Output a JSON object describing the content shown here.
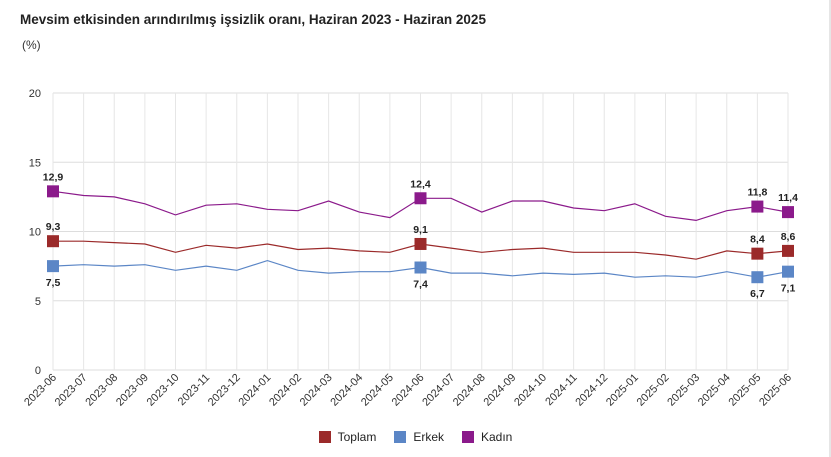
{
  "chart_data": {
    "type": "line",
    "title": "Mevsim etkisinden arındırılmış işsizlik oranı, Haziran 2023 - Haziran 2025",
    "ylabel": "(%)",
    "ylim": [
      0,
      20
    ],
    "yticks": [
      0,
      5,
      10,
      15,
      20
    ],
    "grid": true,
    "legend_position": "bottom",
    "categories": [
      "2023-06",
      "2023-07",
      "2023-08",
      "2023-09",
      "2023-10",
      "2023-11",
      "2023-12",
      "2024-01",
      "2024-02",
      "2024-03",
      "2024-04",
      "2024-05",
      "2024-06",
      "2024-07",
      "2024-08",
      "2024-09",
      "2024-10",
      "2024-11",
      "2024-12",
      "2025-01",
      "2025-02",
      "2025-03",
      "2025-04",
      "2025-05",
      "2025-06"
    ],
    "series": [
      {
        "name": "Toplam",
        "color": "#9b2a2a",
        "values": [
          9.3,
          9.3,
          9.2,
          9.1,
          8.5,
          9.0,
          8.8,
          9.1,
          8.7,
          8.8,
          8.6,
          8.5,
          9.1,
          8.8,
          8.5,
          8.7,
          8.8,
          8.5,
          8.5,
          8.5,
          8.3,
          8.0,
          8.6,
          8.4,
          8.6
        ],
        "labeled": {
          "0": "9,3",
          "12": "9,1",
          "23": "8,4",
          "24": "8,6"
        }
      },
      {
        "name": "Erkek",
        "color": "#5b86c6",
        "values": [
          7.5,
          7.6,
          7.5,
          7.6,
          7.2,
          7.5,
          7.2,
          7.9,
          7.2,
          7.0,
          7.1,
          7.1,
          7.4,
          7.0,
          7.0,
          6.8,
          7.0,
          6.9,
          7.0,
          6.7,
          6.8,
          6.7,
          7.1,
          6.7,
          7.1
        ],
        "labeled": {
          "0": "7,5",
          "12": "7,4",
          "23": "6,7",
          "24": "7,1"
        }
      },
      {
        "name": "Kadın",
        "color": "#8b1a8b",
        "values": [
          12.9,
          12.6,
          12.5,
          12.0,
          11.2,
          11.9,
          12.0,
          11.6,
          11.5,
          12.2,
          11.4,
          11.0,
          12.4,
          12.4,
          11.4,
          12.2,
          12.2,
          11.7,
          11.5,
          12.0,
          11.1,
          10.8,
          11.5,
          11.8,
          11.4
        ],
        "labeled": {
          "0": "12,9",
          "12": "12,4",
          "23": "11,8",
          "24": "11,4"
        }
      }
    ]
  }
}
